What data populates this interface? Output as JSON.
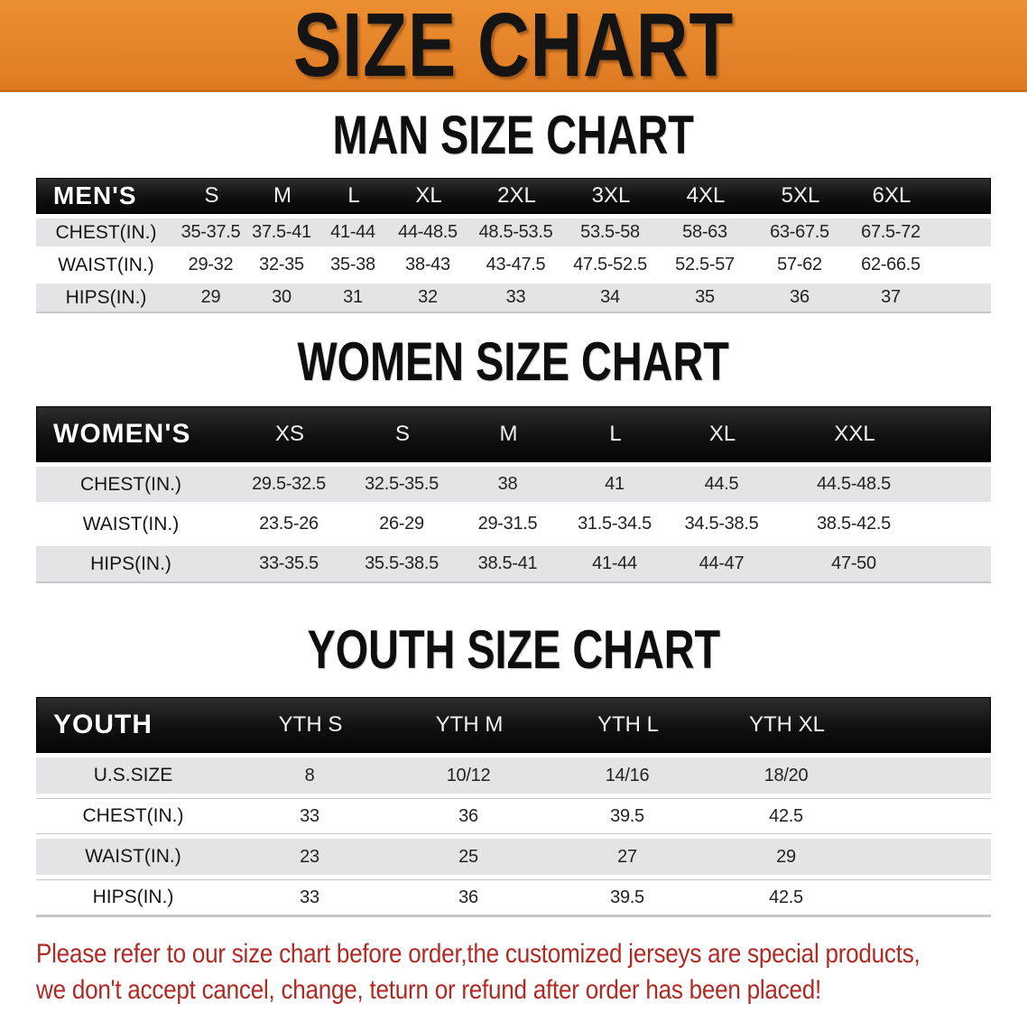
{
  "banner": {
    "title": "SIZE CHART",
    "bg_color": "#e5832a"
  },
  "sections": {
    "men": {
      "heading": "MAN SIZE CHART",
      "corner_label": "MEN'S",
      "columns": [
        "S",
        "M",
        "L",
        "XL",
        "2XL",
        "3XL",
        "4XL",
        "5XL",
        "6XL"
      ],
      "rows": [
        {
          "label": "CHEST(IN.)",
          "values": [
            "35-37.5",
            "37.5-41",
            "41-44",
            "44-48.5",
            "48.5-53.5",
            "53.5-58",
            "58-63",
            "63-67.5",
            "67.5-72"
          ]
        },
        {
          "label": "WAIST(IN.)",
          "values": [
            "29-32",
            "32-35",
            "35-38",
            "38-43",
            "43-47.5",
            "47.5-52.5",
            "52.5-57",
            "57-62",
            "62-66.5"
          ]
        },
        {
          "label": "HIPS(IN.)",
          "values": [
            "29",
            "30",
            "31",
            "32",
            "33",
            "34",
            "35",
            "36",
            "37"
          ]
        }
      ]
    },
    "women": {
      "heading": "WOMEN SIZE CHART",
      "corner_label": "WOMEN'S",
      "columns": [
        "XS",
        "S",
        "M",
        "L",
        "XL",
        "XXL"
      ],
      "rows": [
        {
          "label": "CHEST(IN.)",
          "values": [
            "29.5-32.5",
            "32.5-35.5",
            "38",
            "41",
            "44.5",
            "44.5-48.5"
          ]
        },
        {
          "label": "WAIST(IN.)",
          "values": [
            "23.5-26",
            "26-29",
            "29-31.5",
            "31.5-34.5",
            "34.5-38.5",
            "38.5-42.5"
          ]
        },
        {
          "label": "HIPS(IN.)",
          "values": [
            "33-35.5",
            "35.5-38.5",
            "38.5-41",
            "41-44",
            "44-47",
            "47-50"
          ]
        }
      ]
    },
    "youth": {
      "heading": "YOUTH SIZE CHART",
      "corner_label": "YOUTH",
      "columns": [
        "YTH S",
        "YTH M",
        "YTH L",
        "YTH XL"
      ],
      "rows": [
        {
          "label": "U.S.SIZE",
          "values": [
            "8",
            "10/12",
            "14/16",
            "18/20"
          ]
        },
        {
          "label": "CHEST(IN.)",
          "values": [
            "33",
            "36",
            "39.5",
            "42.5"
          ]
        },
        {
          "label": "WAIST(IN.)",
          "values": [
            "23",
            "25",
            "27",
            "29"
          ]
        },
        {
          "label": "HIPS(IN.)",
          "values": [
            "33",
            "36",
            "39.5",
            "42.5"
          ]
        }
      ]
    }
  },
  "footnote": {
    "line1": "Please refer to our size chart before order,the customized jerseys are special products,",
    "line2": "we don't accept cancel, change, teturn or refund after order has been placed!",
    "color": "#b02a24"
  }
}
